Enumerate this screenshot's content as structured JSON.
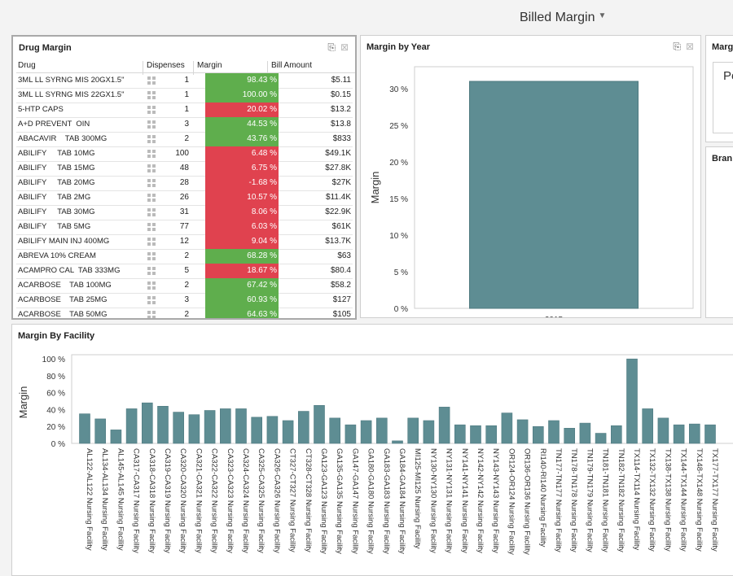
{
  "dashboard": {
    "title": "Billed Margin"
  },
  "drug_margin": {
    "title": "Drug Margin",
    "columns": [
      "Drug",
      "Dispenses",
      "Margin",
      "Bill Amount"
    ],
    "rows": [
      {
        "drug": "3ML LL SYRNG MIS 20GX1.5\"",
        "dispenses": "1",
        "margin": "98.43 %",
        "bill": "$5.11",
        "status": "good"
      },
      {
        "drug": "3ML LL SYRNG MIS 22GX1.5\"",
        "dispenses": "1",
        "margin": "100.00 %",
        "bill": "$0.15",
        "status": "good"
      },
      {
        "drug": "5-HTP CAPS",
        "dispenses": "1",
        "margin": "20.02 %",
        "bill": "$13.2",
        "status": "bad"
      },
      {
        "drug": "A+D PREVENT  OIN",
        "dispenses": "3",
        "margin": "44.53 %",
        "bill": "$13.8",
        "status": "good"
      },
      {
        "drug": "ABACAVIR    TAB 300MG",
        "dispenses": "2",
        "margin": "43.76 %",
        "bill": "$833",
        "status": "good"
      },
      {
        "drug": "ABILIFY     TAB 10MG",
        "dispenses": "100",
        "margin": "6.48 %",
        "bill": "$49.1K",
        "status": "bad"
      },
      {
        "drug": "ABILIFY     TAB 15MG",
        "dispenses": "48",
        "margin": "6.75 %",
        "bill": "$27.8K",
        "status": "bad"
      },
      {
        "drug": "ABILIFY     TAB 20MG",
        "dispenses": "28",
        "margin": "-1.68 %",
        "bill": "$27K",
        "status": "bad"
      },
      {
        "drug": "ABILIFY     TAB 2MG",
        "dispenses": "26",
        "margin": "10.57 %",
        "bill": "$11.4K",
        "status": "bad"
      },
      {
        "drug": "ABILIFY     TAB 30MG",
        "dispenses": "31",
        "margin": "8.06 %",
        "bill": "$22.9K",
        "status": "bad"
      },
      {
        "drug": "ABILIFY     TAB 5MG",
        "dispenses": "77",
        "margin": "6.03 %",
        "bill": "$61K",
        "status": "bad"
      },
      {
        "drug": "ABILIFY MAIN INJ 400MG",
        "dispenses": "12",
        "margin": "9.04 %",
        "bill": "$13.7K",
        "status": "bad"
      },
      {
        "drug": "ABREVA 10% CREAM",
        "dispenses": "2",
        "margin": "68.28 %",
        "bill": "$63",
        "status": "good"
      },
      {
        "drug": "ACAMPRO CAL  TAB 333MG",
        "dispenses": "5",
        "margin": "18.67 %",
        "bill": "$80.4",
        "status": "bad"
      },
      {
        "drug": "ACARBOSE    TAB 100MG",
        "dispenses": "2",
        "margin": "67.42 %",
        "bill": "$58.2",
        "status": "good"
      },
      {
        "drug": "ACARBOSE    TAB 25MG",
        "dispenses": "3",
        "margin": "60.93 %",
        "bill": "$127",
        "status": "good"
      },
      {
        "drug": "ACARBOSE    TAB 50MG",
        "dispenses": "2",
        "margin": "64.63 %",
        "bill": "$105",
        "status": "good"
      }
    ]
  },
  "margin_by_year": {
    "title": "Margin by Year"
  },
  "margin_partial": {
    "title": "Marg",
    "text": "Pe"
  },
  "brand_partial": {
    "title": "Bran"
  },
  "margin_by_facility": {
    "title": "Margin By Facility"
  },
  "colors": {
    "good": "#5fae4d",
    "bad": "#e0424f",
    "bar": "#5e8d93"
  },
  "icons": [
    "export-icon",
    "clear-filter-icon",
    "scroll-up-icon",
    "scroll-down-icon",
    "filter-icon"
  ],
  "chart_data": [
    {
      "type": "bar",
      "categories": [
        "2015"
      ],
      "values": [
        31
      ],
      "ylabel": "Margin",
      "xlabel": "",
      "ylim": [
        0,
        33
      ],
      "yticks": [
        "0 %",
        "5 %",
        "10 %",
        "15 %",
        "20 %",
        "25 %",
        "30 %"
      ],
      "ytick_values": [
        0,
        5,
        10,
        15,
        20,
        25,
        30
      ],
      "grid": false
    },
    {
      "type": "bar",
      "categories": [
        "AL122-AL122 Nursing Facility",
        "AL134-AL134 Nursing Facility",
        "AL145-AL145 Nursing Facility",
        "CA317-CA317 Nursing Facility",
        "CA318-CA318 Nursing Facility",
        "CA319-CA319 Nursing Facility",
        "CA320-CA320 Nursing Facility",
        "CA321-CA321 Nursing Facility",
        "CA322-CA322 Nursing Facility",
        "CA323-CA323 Nursing Facility",
        "CA324-CA324 Nursing Facility",
        "CA325-CA325 Nursing Facility",
        "CA326-CA326 Nursing Facility",
        "CT327-CT327 Nursing Facility",
        "CT328-CT328 Nursing Facility",
        "GA123-GA123 Nursing Facility",
        "GA135-GA135 Nursing Facility",
        "GA147-GA147 Nursing Facility",
        "GA180-GA180 Nursing Facility",
        "GA183-GA183 Nursing Facility",
        "GA184-GA184 Nursing Facility",
        "MI125-MI125 Nursing Facility",
        "NY130-NY130 Nursing Facility",
        "NY131-NY131 Nursing Facility",
        "NY141-NY141 Nursing Facility",
        "NY142-NY142 Nursing Facility",
        "NY143-NY143 Nursing Facility",
        "OR124-OR124 Nursing Facility",
        "OR136-OR136 Nursing Facility",
        "RI140-RI140 Nursing Facility",
        "TN177-TN177 Nursing Facility",
        "TN178-TN178 Nursing Facility",
        "TN179-TN179 Nursing Facility",
        "TN181-TN181 Nursing Facility",
        "TN182-TN182 Nursing Facility",
        "TX114-TX114 Nursing Facility",
        "TX132-TX132 Nursing Facility",
        "TX138-TX138 Nursing Facility",
        "TX144-TX144 Nursing Facility",
        "TX148-TX148 Nursing Facility",
        "TX177-TX177 Nursing Facility"
      ],
      "values": [
        35,
        29,
        16,
        41,
        48,
        44,
        37,
        34,
        39,
        41,
        41,
        31,
        32,
        27,
        38,
        45,
        30,
        22,
        27,
        30,
        3,
        30,
        27,
        43,
        22,
        21,
        21,
        36,
        28,
        20,
        27,
        18,
        24,
        12,
        21,
        100,
        41,
        30,
        22,
        23,
        22
      ],
      "ylabel": "Margin",
      "xlabel": "",
      "ylim": [
        0,
        105
      ],
      "yticks": [
        "0 %",
        "20 %",
        "40 %",
        "60 %",
        "80 %",
        "100 %"
      ],
      "ytick_values": [
        0,
        20,
        40,
        60,
        80,
        100
      ],
      "grid": false
    }
  ]
}
